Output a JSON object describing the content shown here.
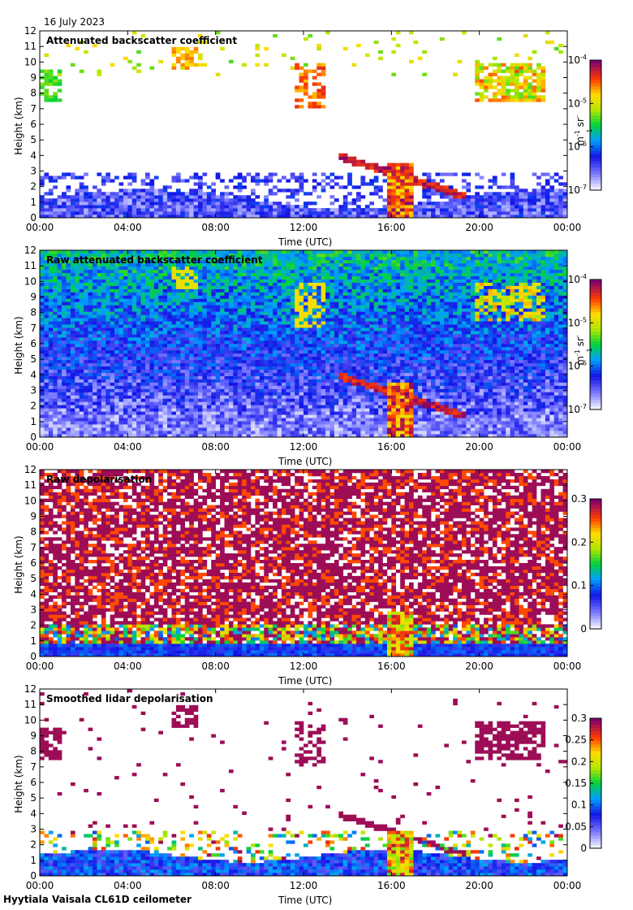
{
  "date": "16 July 2023",
  "footer": "Hyytiala Vaisala CL61D ceilometer",
  "x_tick_labels": [
    "00:00",
    "04:00",
    "08:00",
    "12:00",
    "16:00",
    "20:00",
    "00:00"
  ],
  "y_tick_labels": [
    "0",
    "1",
    "2",
    "3",
    "4",
    "5",
    "6",
    "7",
    "8",
    "9",
    "10",
    "11",
    "12"
  ],
  "xlabel": "Time (UTC)",
  "ylabel": "Height (km)",
  "chart_data": [
    {
      "type": "heatmap",
      "title": "Attenuated backscatter coefficient",
      "xlabel": "Time (UTC)",
      "ylabel": "Height (km)",
      "xlim": [
        0,
        24
      ],
      "ylim": [
        0,
        12
      ],
      "colorbar": {
        "scale": "log",
        "range": [
          1e-07,
          0.0001
        ],
        "units": "m-1 sr-1",
        "tick_labels": [
          "10^-7",
          "10^-6",
          "10^-5",
          "10^-4"
        ]
      },
      "features": [
        {
          "name": "boundary layer",
          "t": [
            0,
            24
          ],
          "h": [
            0,
            2.5
          ],
          "level": "low"
        },
        {
          "name": "high cloud",
          "t": [
            0,
            1
          ],
          "h": [
            7.5,
            9.5
          ],
          "level": "mid"
        },
        {
          "name": "cirrus",
          "t": [
            6,
            7.2
          ],
          "h": [
            9.5,
            11
          ],
          "level": "high"
        },
        {
          "name": "cirrus",
          "t": [
            11.5,
            13
          ],
          "h": [
            7,
            10
          ],
          "level": "high"
        },
        {
          "name": "precipitation",
          "t": [
            15.8,
            17
          ],
          "h": [
            0,
            3.5
          ],
          "level": "max"
        },
        {
          "name": "cloud base",
          "t": [
            13.5,
            19.5
          ],
          "h": [
            1.5,
            4
          ],
          "level": "max"
        },
        {
          "name": "high cloud",
          "t": [
            19.8,
            23
          ],
          "h": [
            7.5,
            10
          ],
          "level": "high"
        }
      ]
    },
    {
      "type": "heatmap",
      "title": "Raw attenuated backscatter coefficient",
      "xlabel": "Time (UTC)",
      "ylabel": "Height (km)",
      "xlim": [
        0,
        24
      ],
      "ylim": [
        0,
        12
      ],
      "colorbar": {
        "scale": "log",
        "range": [
          1e-07,
          0.0001
        ],
        "units": "m-1 sr-1",
        "tick_labels": [
          "10^-7",
          "10^-6",
          "10^-5",
          "10^-4"
        ]
      }
    },
    {
      "type": "heatmap",
      "title": "Raw depolarisation",
      "xlabel": "Time (UTC)",
      "ylabel": "Height (km)",
      "xlim": [
        0,
        24
      ],
      "ylim": [
        0,
        12
      ],
      "colorbar": {
        "scale": "linear",
        "range": [
          0,
          0.3
        ],
        "tick_labels": [
          "0",
          "0.1",
          "0.2",
          "0.3"
        ]
      }
    },
    {
      "type": "heatmap",
      "title": "Smoothed lidar depolarisation",
      "xlabel": "Time (UTC)",
      "ylabel": "Height (km)",
      "xlim": [
        0,
        24
      ],
      "ylim": [
        0,
        12
      ],
      "colorbar": {
        "scale": "linear",
        "range": [
          0,
          0.3
        ],
        "tick_labels": [
          "0",
          "0.05",
          "0.1",
          "0.15",
          "0.2",
          "0.25",
          "0.3"
        ]
      }
    }
  ],
  "colorbar_units_label": "m-1 sr-1"
}
